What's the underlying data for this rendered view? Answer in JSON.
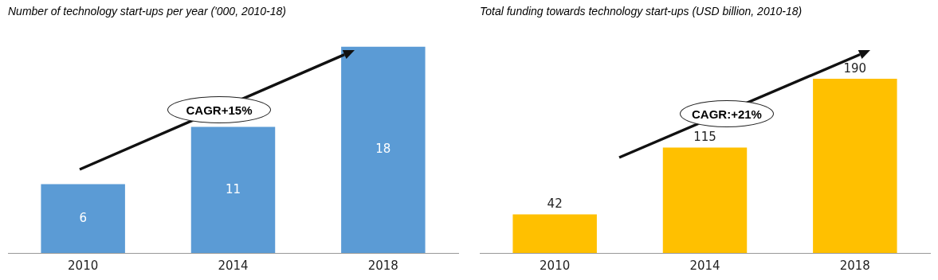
{
  "chart_data": [
    {
      "type": "bar",
      "title": "Number of technology start-ups per year ('000, 2010-18)",
      "categories": [
        "2010",
        "2014",
        "2018"
      ],
      "values": [
        6,
        11,
        18
      ],
      "color": "#5b9bd5",
      "data_labels": true,
      "grid": false,
      "legend": false,
      "annotations": [
        "CAGR+15%"
      ]
    },
    {
      "type": "bar",
      "title": "Total funding towards technology start-ups (USD billion, 2010-18)",
      "categories": [
        "2010",
        "2014",
        "2018"
      ],
      "values": [
        42,
        115,
        190
      ],
      "color": "#ffc000",
      "data_labels": true,
      "grid": false,
      "legend": false,
      "annotations": [
        "CAGR:+21%"
      ]
    }
  ]
}
